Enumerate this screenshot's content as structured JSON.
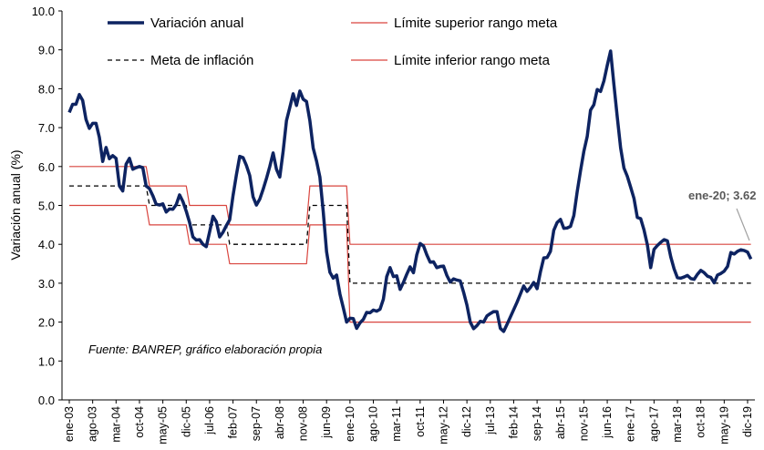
{
  "chart_data": {
    "type": "line",
    "y_label": "Variación anual (%)",
    "source_note": "Fuente: BANREP, gráfico elaboración propia",
    "annotation": "ene-20; 3.62",
    "ylim": [
      0,
      10
    ],
    "yticks": [
      {
        "value": 0,
        "label": "0.0"
      },
      {
        "value": 1,
        "label": "1.0"
      },
      {
        "value": 2,
        "label": "2.0"
      },
      {
        "value": 3,
        "label": "3.0"
      },
      {
        "value": 4,
        "label": "4.0"
      },
      {
        "value": 5,
        "label": "5.0"
      },
      {
        "value": 6,
        "label": "6.0"
      },
      {
        "value": 7,
        "label": "7.0"
      },
      {
        "value": 8,
        "label": "8.0"
      },
      {
        "value": 9,
        "label": "9.0"
      },
      {
        "value": 10,
        "label": "10.0"
      }
    ],
    "categories": [
      "ene-03",
      null,
      null,
      null,
      null,
      null,
      null,
      "ago-03",
      null,
      null,
      null,
      null,
      null,
      null,
      "mar-04",
      null,
      null,
      null,
      null,
      null,
      null,
      "oct-04",
      null,
      null,
      null,
      null,
      null,
      null,
      "may-05",
      null,
      null,
      null,
      null,
      null,
      null,
      "dic-05",
      null,
      null,
      null,
      null,
      null,
      null,
      "jul-06",
      null,
      null,
      null,
      null,
      null,
      null,
      "feb-07",
      null,
      null,
      null,
      null,
      null,
      null,
      "sep-07",
      null,
      null,
      null,
      null,
      null,
      null,
      "abr-08",
      null,
      null,
      null,
      null,
      null,
      null,
      "nov-08",
      null,
      null,
      null,
      null,
      null,
      null,
      "jun-09",
      null,
      null,
      null,
      null,
      null,
      null,
      "ene-10",
      null,
      null,
      null,
      null,
      null,
      null,
      "ago-10",
      null,
      null,
      null,
      null,
      null,
      null,
      "mar-11",
      null,
      null,
      null,
      null,
      null,
      null,
      "oct-11",
      null,
      null,
      null,
      null,
      null,
      null,
      "may-12",
      null,
      null,
      null,
      null,
      null,
      null,
      "dic-12",
      null,
      null,
      null,
      null,
      null,
      null,
      "jul-13",
      null,
      null,
      null,
      null,
      null,
      null,
      "feb-14",
      null,
      null,
      null,
      null,
      null,
      null,
      "sep-14",
      null,
      null,
      null,
      null,
      null,
      null,
      "abr-15",
      null,
      null,
      null,
      null,
      null,
      null,
      "nov-15",
      null,
      null,
      null,
      null,
      null,
      null,
      "jun-16",
      null,
      null,
      null,
      null,
      null,
      null,
      "ene-17",
      null,
      null,
      null,
      null,
      null,
      null,
      "ago-17",
      null,
      null,
      null,
      null,
      null,
      null,
      "mar-18",
      null,
      null,
      null,
      null,
      null,
      null,
      "oct-18",
      null,
      null,
      null,
      null,
      null,
      null,
      "may-19",
      null,
      null,
      null,
      null,
      null,
      null,
      "dic-19",
      null
    ],
    "series": [
      {
        "name": "Variación anual",
        "color": "#0d2361",
        "style": "solid",
        "width": 3.5,
        "values": [
          7.39,
          7.6,
          7.6,
          7.85,
          7.7,
          7.21,
          6.98,
          7.11,
          7.11,
          6.75,
          6.13,
          6.49,
          6.2,
          6.28,
          6.21,
          5.5,
          5.37,
          6.06,
          6.21,
          5.93,
          5.97,
          6.0,
          5.97,
          5.5,
          5.43,
          5.25,
          5.03,
          5.01,
          5.04,
          4.83,
          4.91,
          4.9,
          5.02,
          5.27,
          5.1,
          4.85,
          4.56,
          4.19,
          4.11,
          4.12,
          4.0,
          3.94,
          4.32,
          4.72,
          4.58,
          4.19,
          4.31,
          4.48,
          4.63,
          5.25,
          5.78,
          6.26,
          6.23,
          6.03,
          5.77,
          5.22,
          5.01,
          5.16,
          5.41,
          5.69,
          6.0,
          6.35,
          5.93,
          5.73,
          6.39,
          7.18,
          7.52,
          7.87,
          7.57,
          7.94,
          7.73,
          7.67,
          7.18,
          6.47,
          6.14,
          5.73,
          4.84,
          3.81,
          3.28,
          3.13,
          3.21,
          2.72,
          2.37,
          2.0,
          2.1,
          2.09,
          1.84,
          1.98,
          2.07,
          2.25,
          2.24,
          2.31,
          2.28,
          2.33,
          2.59,
          3.17,
          3.4,
          3.17,
          3.19,
          2.84,
          3.02,
          3.23,
          3.42,
          3.27,
          3.73,
          4.02,
          3.96,
          3.73,
          3.54,
          3.55,
          3.4,
          3.43,
          3.44,
          3.2,
          3.03,
          3.11,
          3.08,
          3.06,
          2.77,
          2.44,
          2.0,
          1.83,
          1.91,
          2.02,
          2.0,
          2.16,
          2.22,
          2.27,
          2.27,
          1.84,
          1.76,
          1.94,
          2.13,
          2.32,
          2.51,
          2.72,
          2.93,
          2.79,
          2.89,
          3.02,
          2.86,
          3.29,
          3.65,
          3.66,
          3.82,
          4.36,
          4.56,
          4.64,
          4.41,
          4.42,
          4.46,
          4.74,
          5.35,
          5.89,
          6.39,
          6.77,
          7.45,
          7.59,
          7.98,
          7.93,
          8.2,
          8.6,
          8.97,
          8.1,
          7.27,
          6.48,
          5.96,
          5.75,
          5.47,
          5.18,
          4.69,
          4.66,
          4.37,
          3.99,
          3.4,
          3.87,
          3.97,
          4.05,
          4.12,
          4.09,
          3.68,
          3.37,
          3.14,
          3.13,
          3.16,
          3.2,
          3.12,
          3.1,
          3.23,
          3.33,
          3.27,
          3.18,
          3.15,
          3.01,
          3.21,
          3.25,
          3.31,
          3.43,
          3.79,
          3.75,
          3.82,
          3.86,
          3.84,
          3.8,
          3.62
        ]
      },
      {
        "name": "Meta de inflación",
        "color": "#000000",
        "style": "dashed",
        "width": 1.3,
        "values": [
          5.5,
          5.5,
          5.5,
          5.5,
          5.5,
          5.5,
          5.5,
          5.5,
          5.5,
          5.5,
          5.5,
          5.5,
          5.5,
          5.5,
          5.5,
          5.5,
          5.5,
          5.5,
          5.5,
          5.5,
          5.5,
          5.5,
          5.5,
          5.5,
          5,
          5,
          5,
          5,
          5,
          5,
          5,
          5,
          5,
          5,
          5,
          5,
          4.5,
          4.5,
          4.5,
          4.5,
          4.5,
          4.5,
          4.5,
          4.5,
          4.5,
          4.5,
          4.5,
          4.5,
          4,
          4,
          4,
          4,
          4,
          4,
          4,
          4,
          4,
          4,
          4,
          4,
          4,
          4,
          4,
          4,
          4,
          4,
          4,
          4,
          4,
          4,
          4,
          4,
          5,
          5,
          5,
          5,
          5,
          5,
          5,
          5,
          5,
          5,
          5,
          5,
          3,
          3,
          3,
          3,
          3,
          3,
          3,
          3,
          3,
          3,
          3,
          3,
          3,
          3,
          3,
          3,
          3,
          3,
          3,
          3,
          3,
          3,
          3,
          3,
          3,
          3,
          3,
          3,
          3,
          3,
          3,
          3,
          3,
          3,
          3,
          3,
          3,
          3,
          3,
          3,
          3,
          3,
          3,
          3,
          3,
          3,
          3,
          3,
          3,
          3,
          3,
          3,
          3,
          3,
          3,
          3,
          3,
          3,
          3,
          3,
          3,
          3,
          3,
          3,
          3,
          3,
          3,
          3,
          3,
          3,
          3,
          3,
          3,
          3,
          3,
          3,
          3,
          3,
          3,
          3,
          3,
          3,
          3,
          3,
          3,
          3,
          3,
          3,
          3,
          3,
          3,
          3,
          3,
          3,
          3,
          3,
          3,
          3,
          3,
          3,
          3,
          3,
          3,
          3,
          3,
          3,
          3,
          3,
          3,
          3,
          3,
          3,
          3,
          3,
          3,
          3,
          3,
          3,
          3,
          3,
          3
        ]
      },
      {
        "name": "Límite superior rango meta",
        "color": "#d9453f",
        "style": "solid",
        "width": 1.2,
        "values": [
          6,
          6,
          6,
          6,
          6,
          6,
          6,
          6,
          6,
          6,
          6,
          6,
          6,
          6,
          6,
          6,
          6,
          6,
          6,
          6,
          6,
          6,
          6,
          6,
          5.5,
          5.5,
          5.5,
          5.5,
          5.5,
          5.5,
          5.5,
          5.5,
          5.5,
          5.5,
          5.5,
          5.5,
          5,
          5,
          5,
          5,
          5,
          5,
          5,
          5,
          5,
          5,
          5,
          5,
          4.5,
          4.5,
          4.5,
          4.5,
          4.5,
          4.5,
          4.5,
          4.5,
          4.5,
          4.5,
          4.5,
          4.5,
          4.5,
          4.5,
          4.5,
          4.5,
          4.5,
          4.5,
          4.5,
          4.5,
          4.5,
          4.5,
          4.5,
          4.5,
          5.5,
          5.5,
          5.5,
          5.5,
          5.5,
          5.5,
          5.5,
          5.5,
          5.5,
          5.5,
          5.5,
          5.5,
          4,
          4,
          4,
          4,
          4,
          4,
          4,
          4,
          4,
          4,
          4,
          4,
          4,
          4,
          4,
          4,
          4,
          4,
          4,
          4,
          4,
          4,
          4,
          4,
          4,
          4,
          4,
          4,
          4,
          4,
          4,
          4,
          4,
          4,
          4,
          4,
          4,
          4,
          4,
          4,
          4,
          4,
          4,
          4,
          4,
          4,
          4,
          4,
          4,
          4,
          4,
          4,
          4,
          4,
          4,
          4,
          4,
          4,
          4,
          4,
          4,
          4,
          4,
          4,
          4,
          4,
          4,
          4,
          4,
          4,
          4,
          4,
          4,
          4,
          4,
          4,
          4,
          4,
          4,
          4,
          4,
          4,
          4,
          4,
          4,
          4,
          4,
          4,
          4,
          4,
          4,
          4,
          4,
          4,
          4,
          4,
          4,
          4,
          4,
          4,
          4,
          4,
          4,
          4,
          4,
          4,
          4,
          4,
          4,
          4,
          4,
          4,
          4,
          4,
          4,
          4,
          4,
          4,
          4,
          4,
          4
        ]
      },
      {
        "name": "Límite inferior rango meta",
        "color": "#d9453f",
        "style": "solid",
        "width": 1.2,
        "values": [
          5,
          5,
          5,
          5,
          5,
          5,
          5,
          5,
          5,
          5,
          5,
          5,
          5,
          5,
          5,
          5,
          5,
          5,
          5,
          5,
          5,
          5,
          5,
          5,
          4.5,
          4.5,
          4.5,
          4.5,
          4.5,
          4.5,
          4.5,
          4.5,
          4.5,
          4.5,
          4.5,
          4.5,
          4,
          4,
          4,
          4,
          4,
          4,
          4,
          4,
          4,
          4,
          4,
          4,
          3.5,
          3.5,
          3.5,
          3.5,
          3.5,
          3.5,
          3.5,
          3.5,
          3.5,
          3.5,
          3.5,
          3.5,
          3.5,
          3.5,
          3.5,
          3.5,
          3.5,
          3.5,
          3.5,
          3.5,
          3.5,
          3.5,
          3.5,
          3.5,
          4.5,
          4.5,
          4.5,
          4.5,
          4.5,
          4.5,
          4.5,
          4.5,
          4.5,
          4.5,
          4.5,
          4.5,
          2,
          2,
          2,
          2,
          2,
          2,
          2,
          2,
          2,
          2,
          2,
          2,
          2,
          2,
          2,
          2,
          2,
          2,
          2,
          2,
          2,
          2,
          2,
          2,
          2,
          2,
          2,
          2,
          2,
          2,
          2,
          2,
          2,
          2,
          2,
          2,
          2,
          2,
          2,
          2,
          2,
          2,
          2,
          2,
          2,
          2,
          2,
          2,
          2,
          2,
          2,
          2,
          2,
          2,
          2,
          2,
          2,
          2,
          2,
          2,
          2,
          2,
          2,
          2,
          2,
          2,
          2,
          2,
          2,
          2,
          2,
          2,
          2,
          2,
          2,
          2,
          2,
          2,
          2,
          2,
          2,
          2,
          2,
          2,
          2,
          2,
          2,
          2,
          2,
          2,
          2,
          2,
          2,
          2,
          2,
          2,
          2,
          2,
          2,
          2,
          2,
          2,
          2,
          2,
          2,
          2,
          2,
          2,
          2,
          2,
          2,
          2,
          2,
          2,
          2,
          2,
          2,
          2,
          2,
          2,
          2
        ]
      }
    ]
  }
}
